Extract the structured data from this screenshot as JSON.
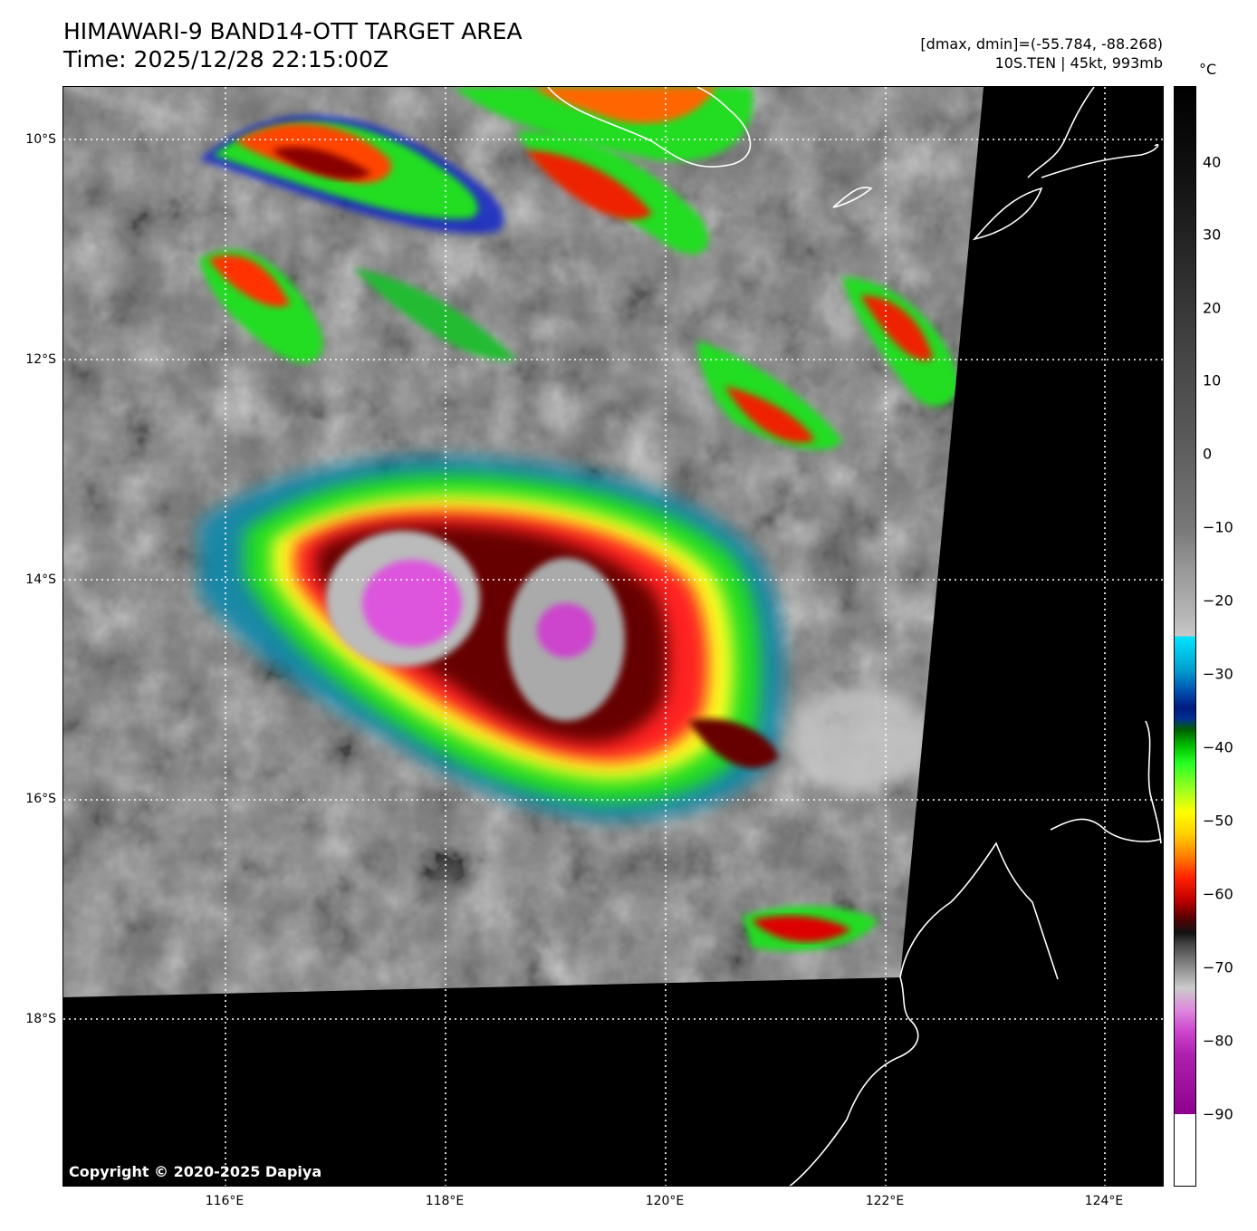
{
  "header": {
    "title": "HIMAWARI-9 BAND14-OTT TARGET AREA",
    "time": "Time: 2025/12/28 22:15:00Z",
    "range": "[dmax, dmin]=(-55.784, -88.268)",
    "storm": "10S.TEN | 45kt, 993mb"
  },
  "map": {
    "lat_labels": [
      "10°S",
      "12°S",
      "14°S",
      "16°S",
      "18°S"
    ],
    "lon_labels": [
      "116°E",
      "118°E",
      "120°E",
      "122°E",
      "124°E"
    ],
    "copyright": "Copyright © 2020-2025 Dapiya",
    "colors": {
      "data_missing": "#000000",
      "coastline": "#ffffff",
      "grid": "#ffffff"
    }
  },
  "colorbar": {
    "unit": "°C",
    "ticks": [
      "40",
      "30",
      "20",
      "10",
      "0",
      "−10",
      "−20",
      "−30",
      "−40",
      "−50",
      "−60",
      "−70",
      "−80",
      "−90"
    ],
    "range": [
      -100,
      50
    ]
  }
}
